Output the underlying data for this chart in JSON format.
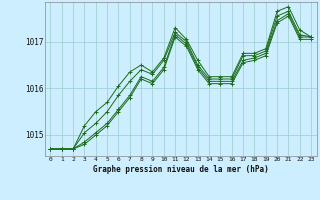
{
  "xlabel": "Graphe pression niveau de la mer (hPa)",
  "background_color": "#cceeff",
  "grid_color": "#99cccc",
  "line_color": "#1a6b1a",
  "x_ticks": [
    0,
    1,
    2,
    3,
    4,
    5,
    6,
    7,
    8,
    9,
    10,
    11,
    12,
    13,
    14,
    15,
    16,
    17,
    18,
    19,
    20,
    21,
    22,
    23
  ],
  "ylim": [
    1014.55,
    1017.85
  ],
  "yticks": [
    1015,
    1016,
    1017
  ],
  "series": [
    [
      1014.7,
      1014.7,
      1014.7,
      1014.8,
      1015.0,
      1015.2,
      1015.5,
      1015.8,
      1016.2,
      1016.1,
      1016.4,
      1017.1,
      1016.9,
      1016.4,
      1016.1,
      1016.1,
      1016.1,
      1016.55,
      1016.6,
      1016.7,
      1017.4,
      1017.55,
      1017.05,
      1017.05
    ],
    [
      1014.7,
      1014.7,
      1014.7,
      1014.85,
      1015.05,
      1015.25,
      1015.55,
      1015.85,
      1016.25,
      1016.15,
      1016.45,
      1017.15,
      1016.95,
      1016.45,
      1016.15,
      1016.15,
      1016.15,
      1016.6,
      1016.65,
      1016.75,
      1017.45,
      1017.6,
      1017.1,
      1017.1
    ],
    [
      1014.7,
      1014.7,
      1014.7,
      1015.05,
      1015.25,
      1015.5,
      1015.85,
      1016.15,
      1016.4,
      1016.3,
      1016.6,
      1017.2,
      1017.0,
      1016.5,
      1016.2,
      1016.2,
      1016.2,
      1016.7,
      1016.7,
      1016.8,
      1017.55,
      1017.65,
      1017.15,
      1017.1
    ],
    [
      1014.7,
      1014.7,
      1014.7,
      1015.2,
      1015.5,
      1015.7,
      1016.05,
      1016.35,
      1016.5,
      1016.35,
      1016.65,
      1017.3,
      1017.05,
      1016.6,
      1016.25,
      1016.25,
      1016.25,
      1016.75,
      1016.75,
      1016.85,
      1017.65,
      1017.75,
      1017.25,
      1017.1
    ]
  ]
}
